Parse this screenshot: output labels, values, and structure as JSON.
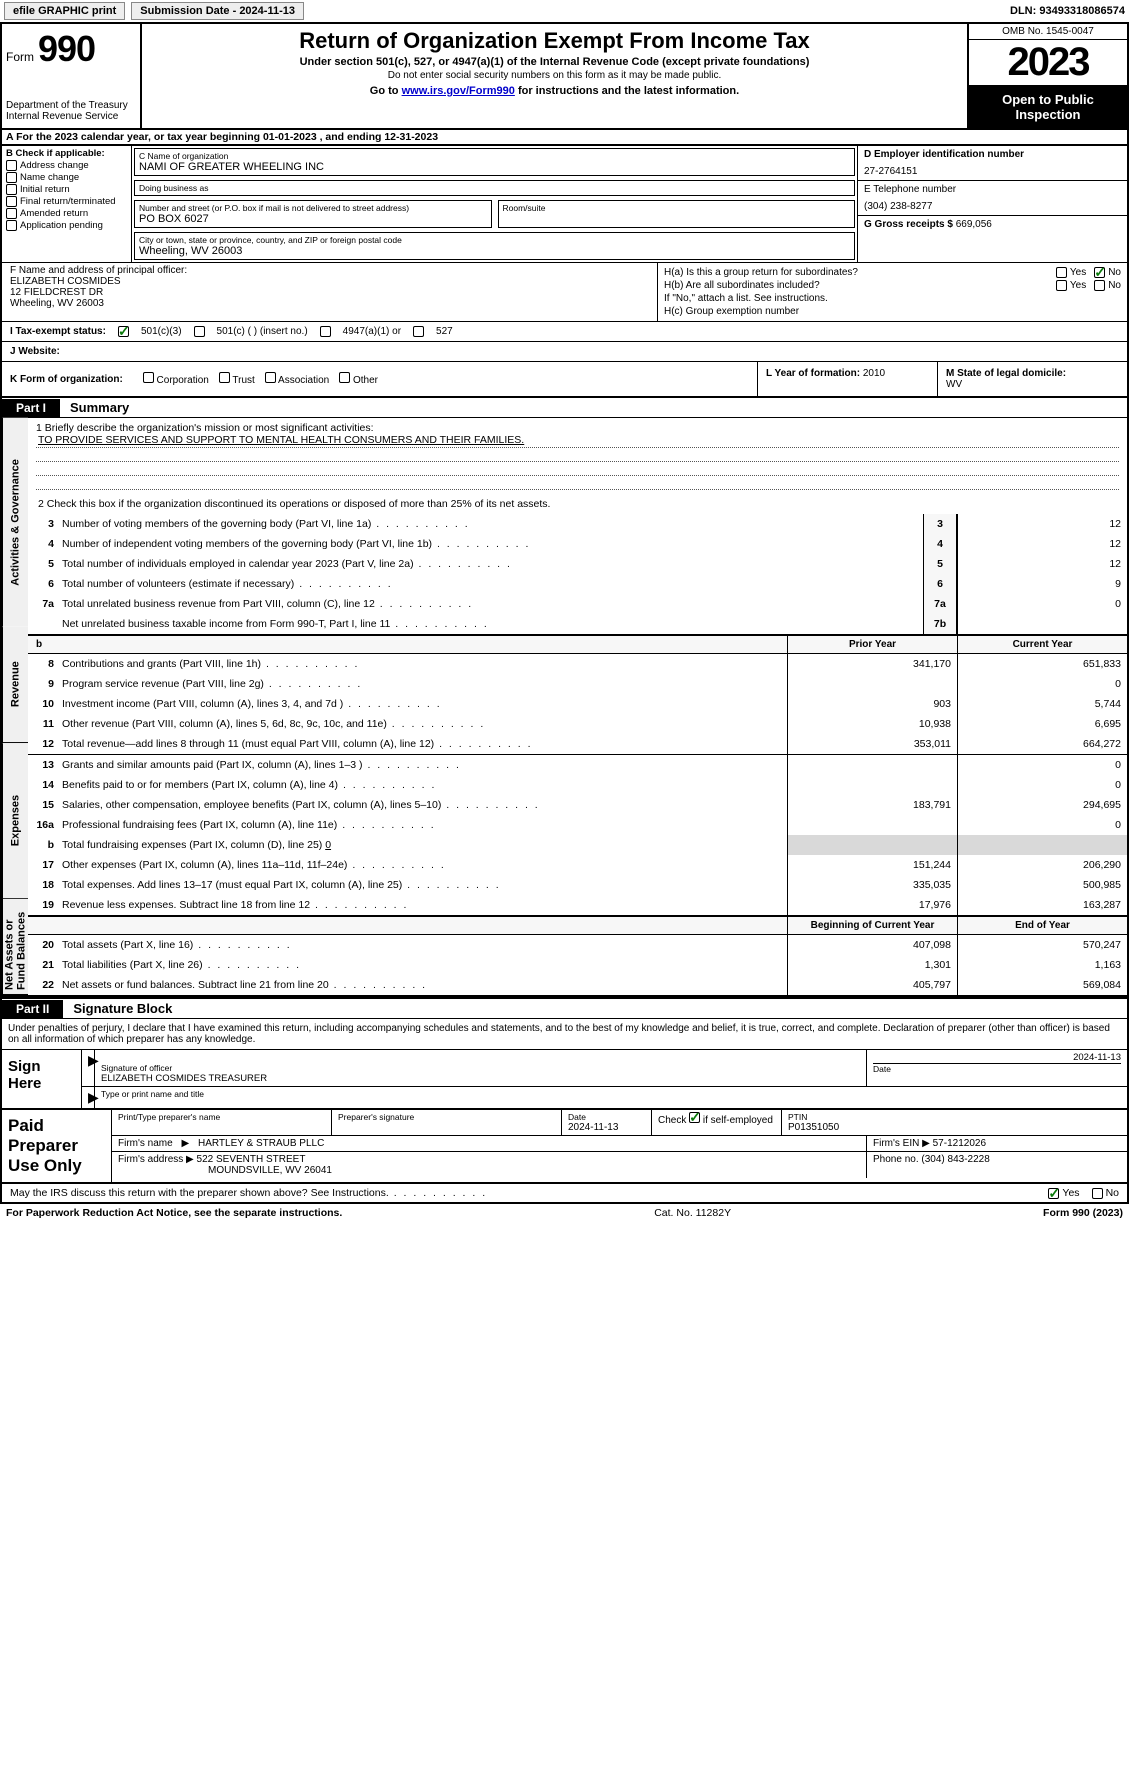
{
  "topbar": {
    "efile_label": "efile GRAPHIC print",
    "submission": "Submission Date - 2024-11-13",
    "dln": "DLN: 93493318086574"
  },
  "header": {
    "form_word": "Form",
    "form_num": "990",
    "title": "Return of Organization Exempt From Income Tax",
    "sub1": "Under section 501(c), 527, or 4947(a)(1) of the Internal Revenue Code (except private foundations)",
    "sub2": "Do not enter social security numbers on this form as it may be made public.",
    "goto_pre": "Go to ",
    "goto_link": "www.irs.gov/Form990",
    "goto_post": " for instructions and the latest information.",
    "dept": "Department of the Treasury",
    "irs": "Internal Revenue Service",
    "omb": "OMB No. 1545-0047",
    "year": "2023",
    "open": "Open to Public Inspection"
  },
  "rowA": "A   For the 2023 calendar year, or tax year beginning 01-01-2023   , and ending 12-31-2023",
  "B": {
    "lbl": "B Check if applicable:",
    "items": [
      "Address change",
      "Name change",
      "Initial return",
      "Final return/terminated",
      "Amended return",
      "Application pending"
    ]
  },
  "C": {
    "name_lbl": "C Name of organization",
    "name": "NAMI OF GREATER WHEELING INC",
    "dba_lbl": "Doing business as",
    "dba": "",
    "street_lbl": "Number and street (or P.O. box if mail is not delivered to street address)",
    "street": "PO BOX 6027",
    "room_lbl": "Room/suite",
    "room": "",
    "city_lbl": "City or town, state or province, country, and ZIP or foreign postal code",
    "city": "Wheeling, WV  26003"
  },
  "D": {
    "ein_lbl": "D Employer identification number",
    "ein": "27-2764151",
    "phone_lbl": "E Telephone number",
    "phone": "(304) 238-8277",
    "gross_lbl": "G Gross receipts $",
    "gross": "669,056"
  },
  "F": {
    "lbl": "F  Name and address of principal officer:",
    "name": "ELIZABETH COSMIDES",
    "addr1": "12 FIELDCREST DR",
    "addr2": "Wheeling, WV  26003"
  },
  "H": {
    "a_lbl": "H(a)  Is this a group return for subordinates?",
    "b_lbl": "H(b)  Are all subordinates included?",
    "b_note": "If \"No,\" attach a list. See instructions.",
    "c_lbl": "H(c)  Group exemption number",
    "a_yes": false,
    "a_no": true,
    "b_yes": false,
    "b_no": false,
    "yes": "Yes",
    "no": "No"
  },
  "I": {
    "lbl": "I   Tax-exempt status:",
    "o1": "501(c)(3)",
    "o2": "501(c) (  ) (insert no.)",
    "o3": "4947(a)(1) or",
    "o4": "527"
  },
  "J": {
    "lbl": "J   Website:",
    "val": ""
  },
  "K": {
    "lbl": "K Form of organization:",
    "opts": [
      "Corporation",
      "Trust",
      "Association",
      "Other"
    ]
  },
  "L": {
    "lbl": "L Year of formation:",
    "val": "2010"
  },
  "M": {
    "lbl": "M State of legal domicile:",
    "val": "WV"
  },
  "part1": {
    "tag": "Part I",
    "title": "Summary"
  },
  "mission": {
    "lbl": "1   Briefly describe the organization's mission or most significant activities:",
    "text": "TO PROVIDE SERVICES AND SUPPORT TO MENTAL HEALTH CONSUMERS AND THEIR FAMILIES."
  },
  "line2": "2   Check this box        if the organization discontinued its operations or disposed of more than 25% of its net assets.",
  "vtabs": {
    "ag": "Activities & Governance",
    "rev": "Revenue",
    "exp": "Expenses",
    "na": "Net Assets or Fund Balances"
  },
  "govRows": [
    {
      "n": "3",
      "desc": "Number of voting members of the governing body (Part VI, line 1a)",
      "idx": "3",
      "val": "12"
    },
    {
      "n": "4",
      "desc": "Number of independent voting members of the governing body (Part VI, line 1b)",
      "idx": "4",
      "val": "12"
    },
    {
      "n": "5",
      "desc": "Total number of individuals employed in calendar year 2023 (Part V, line 2a)",
      "idx": "5",
      "val": "12"
    },
    {
      "n": "6",
      "desc": "Total number of volunteers (estimate if necessary)",
      "idx": "6",
      "val": "9"
    },
    {
      "n": "7a",
      "desc": "Total unrelated business revenue from Part VIII, column (C), line 12",
      "idx": "7a",
      "val": "0"
    },
    {
      "n": "",
      "desc": "Net unrelated business taxable income from Form 990-T, Part I, line 11",
      "idx": "7b",
      "val": ""
    }
  ],
  "twoHdr1": {
    "h1": "Prior Year",
    "h2": "Current Year"
  },
  "revRows": [
    {
      "n": "8",
      "desc": "Contributions and grants (Part VIII, line 1h)",
      "p": "341,170",
      "c": "651,833"
    },
    {
      "n": "9",
      "desc": "Program service revenue (Part VIII, line 2g)",
      "p": "",
      "c": "0"
    },
    {
      "n": "10",
      "desc": "Investment income (Part VIII, column (A), lines 3, 4, and 7d )",
      "p": "903",
      "c": "5,744"
    },
    {
      "n": "11",
      "desc": "Other revenue (Part VIII, column (A), lines 5, 6d, 8c, 9c, 10c, and 11e)",
      "p": "10,938",
      "c": "6,695"
    },
    {
      "n": "12",
      "desc": "Total revenue—add lines 8 through 11 (must equal Part VIII, column (A), line 12)",
      "p": "353,011",
      "c": "664,272"
    }
  ],
  "expRows": [
    {
      "n": "13",
      "desc": "Grants and similar amounts paid (Part IX, column (A), lines 1–3 )",
      "p": "",
      "c": "0"
    },
    {
      "n": "14",
      "desc": "Benefits paid to or for members (Part IX, column (A), line 4)",
      "p": "",
      "c": "0"
    },
    {
      "n": "15",
      "desc": "Salaries, other compensation, employee benefits (Part IX, column (A), lines 5–10)",
      "p": "183,791",
      "c": "294,695"
    },
    {
      "n": "16a",
      "desc": "Professional fundraising fees (Part IX, column (A), line 11e)",
      "p": "",
      "c": "0"
    },
    {
      "n": "b",
      "desc": "Total fundraising expenses (Part IX, column (D), line 25) 0",
      "p": "SHADE",
      "c": "SHADE"
    },
    {
      "n": "17",
      "desc": "Other expenses (Part IX, column (A), lines 11a–11d, 11f–24e)",
      "p": "151,244",
      "c": "206,290"
    },
    {
      "n": "18",
      "desc": "Total expenses. Add lines 13–17 (must equal Part IX, column (A), line 25)",
      "p": "335,035",
      "c": "500,985"
    },
    {
      "n": "19",
      "desc": "Revenue less expenses. Subtract line 18 from line 12",
      "p": "17,976",
      "c": "163,287"
    }
  ],
  "twoHdr2": {
    "h1": "Beginning of Current Year",
    "h2": "End of Year"
  },
  "naRows": [
    {
      "n": "20",
      "desc": "Total assets (Part X, line 16)",
      "p": "407,098",
      "c": "570,247"
    },
    {
      "n": "21",
      "desc": "Total liabilities (Part X, line 26)",
      "p": "1,301",
      "c": "1,163"
    },
    {
      "n": "22",
      "desc": "Net assets or fund balances. Subtract line 21 from line 20",
      "p": "405,797",
      "c": "569,084"
    }
  ],
  "part2": {
    "tag": "Part II",
    "title": "Signature Block"
  },
  "sigText": "Under penalties of perjury, I declare that I have examined this return, including accompanying schedules and statements, and to the best of my knowledge and belief, it is true, correct, and complete. Declaration of preparer (other than officer) is based on all information of which preparer has any knowledge.",
  "sign": {
    "left": "Sign Here",
    "sig_lbl": "Signature of officer",
    "sig_name": "ELIZABETH COSMIDES TREASURER",
    "type_lbl": "Type or print name and title",
    "date_lbl": "Date",
    "date": "2024-11-13",
    "sig_arrow": "▶"
  },
  "prep": {
    "left": "Paid Preparer Use Only",
    "r1": {
      "name_lbl": "Print/Type preparer's name",
      "sig_lbl": "Preparer's signature",
      "date_lbl": "Date",
      "date": "2024-11-13",
      "self_lbl": "Check        if self-employed",
      "self": true,
      "ptin_lbl": "PTIN",
      "ptin": "P01351050"
    },
    "r2": {
      "firm_lbl": "Firm's name",
      "firm": "HARTLEY & STRAUB PLLC",
      "ein_lbl": "Firm's EIN",
      "ein": "57-1212026"
    },
    "r3": {
      "addr_lbl": "Firm's address",
      "addr": "522 SEVENTH STREET",
      "city": "MOUNDSVILLE, WV  26041",
      "ph_lbl": "Phone no.",
      "ph": "(304) 843-2228"
    },
    "arrow": "▶"
  },
  "discuss": {
    "q": "May the IRS discuss this return with the preparer shown above? See Instructions.",
    "yes": true,
    "no": false,
    "yes_lbl": "Yes",
    "no_lbl": "No"
  },
  "footer": {
    "left": "For Paperwork Reduction Act Notice, see the separate instructions.",
    "mid": "Cat. No. 11282Y",
    "right": "Form 990 (2023)"
  }
}
